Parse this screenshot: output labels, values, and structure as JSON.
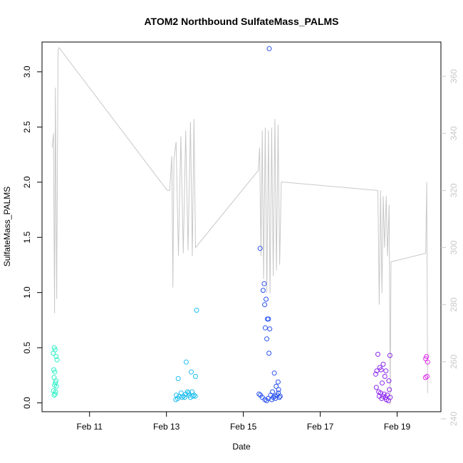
{
  "chart_data": {
    "type": "scatter",
    "title": "ATOM2 Northbound SulfateMass_PALMS",
    "xlabel": "Date",
    "ylabel": "SulfateMass_PALMS",
    "xlim": [
      "2017-02-09T18:20",
      "2017-02-20T03:20"
    ],
    "ylim": [
      -0.08,
      3.27
    ],
    "y2lim": [
      242.5,
      372
    ],
    "x_ticks": [
      {
        "label": "Feb 11",
        "date": "2017-02-11"
      },
      {
        "label": "Feb 13",
        "date": "2017-02-13"
      },
      {
        "label": "Feb 15",
        "date": "2017-02-15"
      },
      {
        "label": "Feb 17",
        "date": "2017-02-17"
      },
      {
        "label": "Feb 19",
        "date": "2017-02-19"
      }
    ],
    "y_ticks": [
      "0.0",
      "0.5",
      "1.0",
      "1.5",
      "2.0",
      "2.5",
      "3.0"
    ],
    "y2_ticks": [
      "240",
      "260",
      "280",
      "300",
      "320",
      "340",
      "360"
    ],
    "grid": false,
    "legend": "none",
    "line_color": "#c8c8c8",
    "series": [
      {
        "color": "#2ef0c8",
        "points": [
          [
            "2017-02-10T01:20",
            0.45
          ],
          [
            "2017-02-10T02:00",
            0.5
          ],
          [
            "2017-02-10T02:30",
            0.48
          ],
          [
            "2017-02-10T03:10",
            0.42
          ],
          [
            "2017-02-10T03:40",
            0.39
          ],
          [
            "2017-02-10T01:40",
            0.3
          ],
          [
            "2017-02-10T02:20",
            0.28
          ],
          [
            "2017-02-10T01:50",
            0.23
          ],
          [
            "2017-02-10T03:00",
            0.2
          ],
          [
            "2017-02-10T02:40",
            0.18
          ],
          [
            "2017-02-10T02:10",
            0.16
          ],
          [
            "2017-02-10T03:20",
            0.15
          ],
          [
            "2017-02-10T01:30",
            0.11
          ],
          [
            "2017-02-10T02:50",
            0.1
          ],
          [
            "2017-02-10T01:50",
            0.07
          ],
          [
            "2017-02-10T02:30",
            0.08
          ]
        ]
      },
      {
        "color": "#1ebef0",
        "points": [
          [
            "2017-02-13T18:50",
            0.84
          ],
          [
            "2017-02-13T12:20",
            0.37
          ],
          [
            "2017-02-13T15:30",
            0.28
          ],
          [
            "2017-02-13T18:10",
            0.24
          ],
          [
            "2017-02-13T07:20",
            0.22
          ],
          [
            "2017-02-13T16:00",
            0.1
          ],
          [
            "2017-02-13T09:10",
            0.09
          ],
          [
            "2017-02-13T13:10",
            0.1
          ],
          [
            "2017-02-13T06:10",
            0.07
          ],
          [
            "2017-02-13T08:00",
            0.06
          ],
          [
            "2017-02-13T10:30",
            0.06
          ],
          [
            "2017-02-13T12:00",
            0.08
          ],
          [
            "2017-02-13T14:00",
            0.07
          ],
          [
            "2017-02-13T15:00",
            0.05
          ],
          [
            "2017-02-13T17:10",
            0.07
          ],
          [
            "2017-02-13T18:00",
            0.06
          ],
          [
            "2017-02-13T05:50",
            0.03
          ],
          [
            "2017-02-13T07:00",
            0.04
          ],
          [
            "2017-02-13T09:40",
            0.05
          ],
          [
            "2017-02-13T11:20",
            0.05
          ],
          [
            "2017-02-13T16:30",
            0.06
          ],
          [
            "2017-02-13T13:50",
            0.09
          ]
        ]
      },
      {
        "color": "#2850f0",
        "points": [
          [
            "2017-02-15T16:10",
            3.21
          ],
          [
            "2017-02-15T10:30",
            1.4
          ],
          [
            "2017-02-15T13:00",
            1.08
          ],
          [
            "2017-02-15T12:20",
            1.02
          ],
          [
            "2017-02-15T14:10",
            0.94
          ],
          [
            "2017-02-15T13:20",
            0.89
          ],
          [
            "2017-02-15T15:40",
            0.76
          ],
          [
            "2017-02-15T15:00",
            0.76
          ],
          [
            "2017-02-15T13:40",
            0.68
          ],
          [
            "2017-02-15T16:30",
            0.67
          ],
          [
            "2017-02-15T14:40",
            0.58
          ],
          [
            "2017-02-15T16:00",
            0.45
          ],
          [
            "2017-02-15T19:20",
            0.27
          ],
          [
            "2017-02-15T21:40",
            0.19
          ],
          [
            "2017-02-15T20:30",
            0.15
          ],
          [
            "2017-02-15T22:00",
            0.12
          ],
          [
            "2017-02-15T18:10",
            0.1
          ],
          [
            "2017-02-15T09:50",
            0.08
          ],
          [
            "2017-02-15T10:40",
            0.07
          ],
          [
            "2017-02-15T17:00",
            0.07
          ],
          [
            "2017-02-15T19:50",
            0.06
          ],
          [
            "2017-02-15T21:10",
            0.07
          ],
          [
            "2017-02-15T22:30",
            0.05
          ],
          [
            "2017-02-15T11:50",
            0.05
          ],
          [
            "2017-02-15T13:30",
            0.03
          ],
          [
            "2017-02-15T14:30",
            0.02
          ],
          [
            "2017-02-15T15:30",
            0.04
          ],
          [
            "2017-02-15T18:40",
            0.05
          ],
          [
            "2017-02-15T20:00",
            0.04
          ],
          [
            "2017-02-15T23:00",
            0.06
          ],
          [
            "2017-02-15T21:50",
            0.09
          ],
          [
            "2017-02-15T17:40",
            0.03
          ]
        ]
      },
      {
        "color": "#8c28f0",
        "points": [
          [
            "2017-02-18T12:00",
            0.44
          ],
          [
            "2017-02-18T15:20",
            0.35
          ],
          [
            "2017-02-18T13:10",
            0.32
          ],
          [
            "2017-02-18T14:00",
            0.3
          ],
          [
            "2017-02-18T11:20",
            0.29
          ],
          [
            "2017-02-18T17:00",
            0.29
          ],
          [
            "2017-02-18T10:40",
            0.26
          ],
          [
            "2017-02-18T16:20",
            0.24
          ],
          [
            "2017-02-18T19:30",
            0.43
          ],
          [
            "2017-02-18T18:50",
            0.2
          ],
          [
            "2017-02-18T14:40",
            0.18
          ],
          [
            "2017-02-18T11:00",
            0.14
          ],
          [
            "2017-02-18T19:10",
            0.12
          ],
          [
            "2017-02-18T12:30",
            0.1
          ],
          [
            "2017-02-18T13:40",
            0.09
          ],
          [
            "2017-02-18T15:50",
            0.08
          ],
          [
            "2017-02-18T17:50",
            0.07
          ],
          [
            "2017-02-18T12:50",
            0.06
          ],
          [
            "2017-02-18T16:40",
            0.05
          ],
          [
            "2017-02-18T19:40",
            0.05
          ],
          [
            "2017-02-18T14:20",
            0.04
          ],
          [
            "2017-02-18T17:20",
            0.03
          ],
          [
            "2017-02-18T18:30",
            0.02
          ],
          [
            "2017-02-18T15:10",
            0.06
          ]
        ]
      },
      {
        "color": "#e028f0",
        "points": [
          [
            "2017-02-19T18:20",
            0.42
          ],
          [
            "2017-02-19T17:50",
            0.4
          ],
          [
            "2017-02-19T19:00",
            0.37
          ],
          [
            "2017-02-19T18:40",
            0.24
          ],
          [
            "2017-02-19T17:40",
            0.23
          ]
        ]
      }
    ],
    "secondary_line": {
      "axis": "right",
      "points": [
        [
          "2017-02-10T00:40",
          335
        ],
        [
          "2017-02-10T01:30",
          340
        ],
        [
          "2017-02-10T02:10",
          277
        ],
        [
          "2017-02-10T02:40",
          356
        ],
        [
          "2017-02-10T03:30",
          282
        ],
        [
          "2017-02-10T04:20",
          369
        ],
        [
          "2017-02-10T05:00",
          370
        ],
        [
          "2017-02-13T00:30",
          320
        ],
        [
          "2017-02-13T02:00",
          320
        ],
        [
          "2017-02-13T02:40",
          326
        ],
        [
          "2017-02-13T03:20",
          332
        ],
        [
          "2017-02-13T04:00",
          286
        ],
        [
          "2017-02-13T04:40",
          331
        ],
        [
          "2017-02-13T06:00",
          337
        ],
        [
          "2017-02-13T07:30",
          297
        ],
        [
          "2017-02-13T09:00",
          339
        ],
        [
          "2017-02-13T10:30",
          298
        ],
        [
          "2017-02-13T12:00",
          341
        ],
        [
          "2017-02-13T13:30",
          299
        ],
        [
          "2017-02-13T15:00",
          344
        ],
        [
          "2017-02-13T16:10",
          297
        ],
        [
          "2017-02-13T17:10",
          345
        ],
        [
          "2017-02-13T18:10",
          300
        ],
        [
          "2017-02-15T09:20",
          327
        ],
        [
          "2017-02-15T10:10",
          335
        ],
        [
          "2017-02-15T11:00",
          297
        ],
        [
          "2017-02-15T11:50",
          341
        ],
        [
          "2017-02-15T12:40",
          289
        ],
        [
          "2017-02-15T13:40",
          342
        ],
        [
          "2017-02-15T14:40",
          284
        ],
        [
          "2017-02-15T15:40",
          341
        ],
        [
          "2017-02-15T16:40",
          284
        ],
        [
          "2017-02-15T17:40",
          342
        ],
        [
          "2017-02-15T18:40",
          290
        ],
        [
          "2017-02-15T19:40",
          345
        ],
        [
          "2017-02-15T20:40",
          292
        ],
        [
          "2017-02-15T21:40",
          343
        ],
        [
          "2017-02-15T22:40",
          294
        ],
        [
          "2017-02-15T23:40",
          323
        ],
        [
          "2017-02-18T12:00",
          320
        ],
        [
          "2017-02-18T12:50",
          280
        ],
        [
          "2017-02-18T13:40",
          320
        ],
        [
          "2017-02-18T14:30",
          284
        ],
        [
          "2017-02-18T15:20",
          318
        ],
        [
          "2017-02-18T16:10",
          300
        ],
        [
          "2017-02-18T17:10",
          318
        ],
        [
          "2017-02-18T18:00",
          297
        ],
        [
          "2017-02-18T19:00",
          315
        ],
        [
          "2017-02-18T19:40",
          245
        ],
        [
          "2017-02-18T20:10",
          295
        ],
        [
          "2017-02-19T17:50",
          298
        ],
        [
          "2017-02-19T18:30",
          323
        ],
        [
          "2017-02-19T19:00",
          249
        ]
      ]
    }
  }
}
